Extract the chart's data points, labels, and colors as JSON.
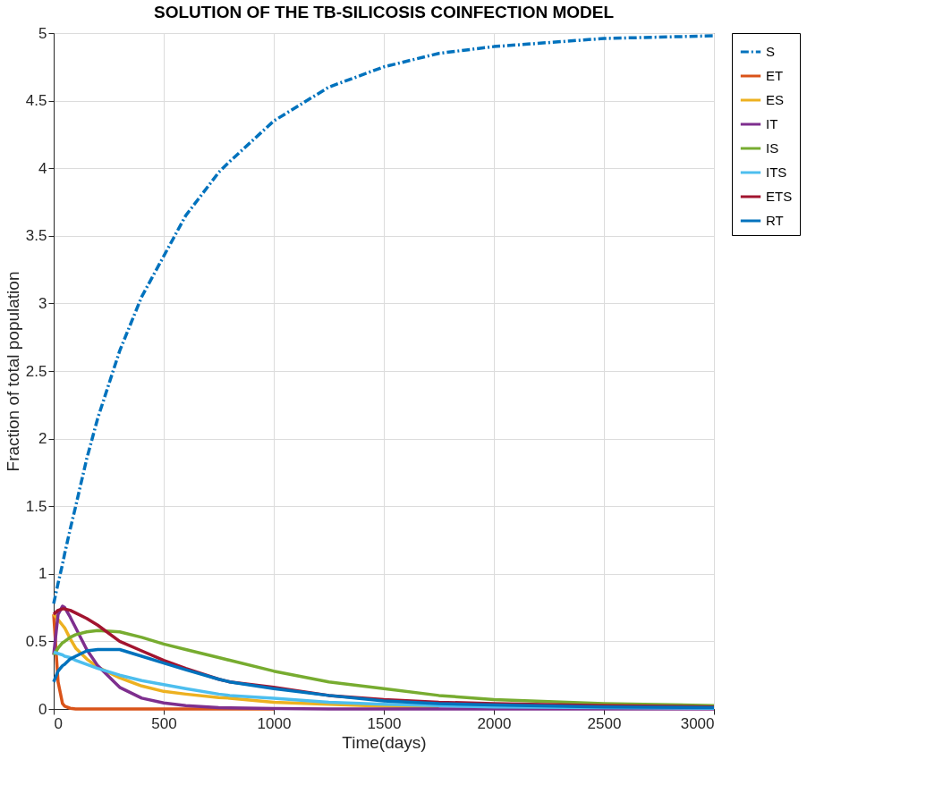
{
  "chart_data": {
    "type": "line",
    "title": "SOLUTION OF THE TB-SILICOSIS COINFECTION MODEL",
    "xlabel": "Time(days)",
    "ylabel": "Fraction of total population",
    "x": [
      0,
      20,
      40,
      50,
      75,
      100,
      150,
      200,
      300,
      400,
      500,
      600,
      750,
      800,
      1000,
      1250,
      1500,
      1750,
      2000,
      2500,
      3000
    ],
    "series": [
      {
        "name": "S",
        "color": "#0072bd",
        "line_style": "dashdot",
        "values": [
          0.78,
          0.93,
          1.07,
          1.15,
          1.33,
          1.5,
          1.85,
          2.15,
          2.65,
          3.05,
          3.35,
          3.65,
          3.97,
          4.05,
          4.35,
          4.6,
          4.75,
          4.85,
          4.9,
          4.96,
          4.98
        ]
      },
      {
        "name": "ET",
        "color": "#d95319",
        "line_style": "solid",
        "values": [
          0.7,
          0.2,
          0.04,
          0.02,
          0.005,
          0,
          0,
          0,
          0,
          0,
          0,
          0,
          0,
          0,
          0,
          null,
          null,
          null,
          null,
          null,
          null
        ]
      },
      {
        "name": "ES",
        "color": "#edb120",
        "line_style": "solid",
        "values": [
          0.7,
          0.66,
          0.62,
          0.6,
          0.52,
          0.45,
          0.37,
          0.31,
          0.23,
          0.17,
          0.13,
          0.11,
          0.085,
          0.08,
          0.05,
          0.035,
          0.02,
          0.015,
          null,
          null,
          null
        ]
      },
      {
        "name": "IT",
        "color": "#7e2f8e",
        "line_style": "solid",
        "values": [
          0.4,
          0.7,
          0.76,
          0.75,
          0.68,
          0.6,
          0.44,
          0.32,
          0.16,
          0.08,
          0.045,
          0.025,
          0.01,
          0.008,
          0.003,
          0,
          0,
          0,
          0,
          0,
          0
        ]
      },
      {
        "name": "IS",
        "color": "#77ac30",
        "line_style": "solid",
        "values": [
          0.4,
          0.45,
          0.49,
          0.5,
          0.53,
          0.55,
          0.57,
          0.58,
          0.57,
          0.53,
          0.48,
          0.44,
          0.38,
          0.36,
          0.28,
          0.2,
          0.15,
          0.1,
          0.07,
          0.04,
          0.025
        ]
      },
      {
        "name": "ITS",
        "color": "#4dbeee",
        "line_style": "solid",
        "values": [
          0.42,
          0.41,
          0.4,
          0.39,
          0.38,
          0.36,
          0.33,
          0.3,
          0.25,
          0.21,
          0.18,
          0.15,
          0.11,
          0.1,
          0.08,
          0.05,
          0.035,
          0.025,
          0.015,
          0.01,
          0.005
        ]
      },
      {
        "name": "ETS",
        "color": "#a2142f",
        "line_style": "solid",
        "values": [
          0.7,
          0.73,
          0.74,
          0.74,
          0.73,
          0.71,
          0.67,
          0.62,
          0.5,
          0.43,
          0.36,
          0.3,
          0.22,
          0.2,
          0.16,
          0.1,
          0.07,
          0.05,
          0.04,
          0.025,
          0.015
        ]
      },
      {
        "name": "RT",
        "color": "#0072bd",
        "line_style": "solid",
        "values": [
          0.2,
          0.28,
          0.32,
          0.33,
          0.37,
          0.39,
          0.43,
          0.44,
          0.44,
          0.39,
          0.34,
          0.29,
          0.22,
          0.2,
          0.15,
          0.1,
          0.06,
          0.04,
          0.03,
          0.015,
          0.01
        ]
      }
    ],
    "xlim": [
      0,
      3000
    ],
    "xticks": [
      0,
      500,
      1000,
      1500,
      2000,
      2500,
      3000
    ],
    "ylim": [
      0,
      5
    ],
    "yticks": [
      0,
      0.5,
      1,
      1.5,
      2,
      2.5,
      3,
      3.5,
      4,
      4.5,
      5
    ],
    "grid": true,
    "legend": "right",
    "marker": "none"
  }
}
